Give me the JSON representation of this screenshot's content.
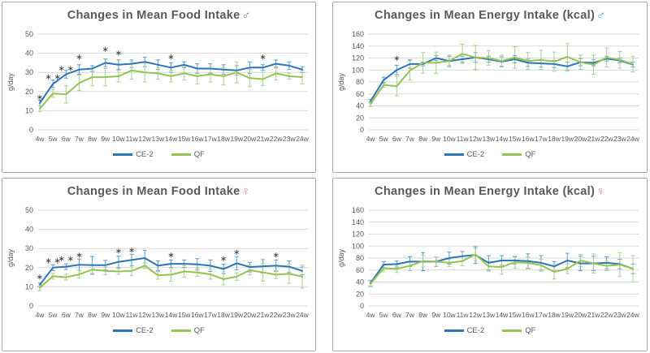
{
  "chart_data": [
    {
      "type": "line",
      "title": "Changes in Mean Food Intake",
      "symbol": "♂",
      "symbol_color": "#4a86c8",
      "ylabel": "g/day",
      "ylim": [
        0,
        50
      ],
      "ytick": 10,
      "grid": true,
      "legend_position": "bottom",
      "x": [
        "4w",
        "5w",
        "6w",
        "7w",
        "8w",
        "9w",
        "10w",
        "11w",
        "12w",
        "13w",
        "14w",
        "15w",
        "16w",
        "17w",
        "18w",
        "19w",
        "20w",
        "21w",
        "22w",
        "23w",
        "24w"
      ],
      "series": [
        {
          "name": "CE-2",
          "color": "#2e75b6",
          "err_color": "#5b9bd5",
          "values": [
            14,
            24,
            29,
            31.5,
            32,
            35,
            34,
            34.5,
            35.5,
            34,
            32.5,
            34,
            32,
            32,
            31.5,
            31,
            32.5,
            32.5,
            34.5,
            33.5,
            31.5
          ],
          "err": [
            1.5,
            2,
            2,
            2.5,
            1.5,
            2,
            2.5,
            2,
            2.5,
            2.5,
            2.5,
            1.5,
            2.5,
            2.5,
            2.5,
            2.5,
            3,
            1.5,
            2,
            2,
            1.5
          ]
        },
        {
          "name": "QF",
          "color": "#94c452",
          "err_color": "#a9d18e",
          "values": [
            11,
            19,
            18.5,
            24.5,
            27.5,
            27.5,
            28,
            31,
            30,
            29.5,
            28,
            29.5,
            28,
            29,
            28,
            30,
            27,
            26.5,
            29.5,
            28,
            27.5
          ],
          "err": [
            1.5,
            2,
            4.5,
            4,
            4.5,
            4.5,
            3,
            4.5,
            5,
            3,
            3,
            3.5,
            4,
            4,
            4.5,
            5.5,
            4.5,
            3.5,
            3.5,
            1.5,
            3.5
          ]
        }
      ],
      "asterisks": [
        {
          "i": 0,
          "y": 17,
          "n": 1
        },
        {
          "i": 1,
          "y": 27.5,
          "n": 2
        },
        {
          "i": 2,
          "y": 32,
          "n": 2
        },
        {
          "i": 3,
          "y": 38,
          "n": 1
        },
        {
          "i": 5,
          "y": 42,
          "n": 1
        },
        {
          "i": 6,
          "y": 40,
          "n": 1
        },
        {
          "i": 10,
          "y": 38,
          "n": 1
        },
        {
          "i": 17,
          "y": 38,
          "n": 1
        }
      ]
    },
    {
      "type": "line",
      "title": "Changes in Mean Energy Intake (kcal)",
      "symbol": "♂",
      "symbol_color": "#4a86c8",
      "ylabel": "g/day",
      "ylim": [
        0,
        160
      ],
      "ytick": 20,
      "grid": true,
      "legend_position": "bottom",
      "x": [
        "4w",
        "5w",
        "6w",
        "7w",
        "8w",
        "9w",
        "10w",
        "11w",
        "12w",
        "13w",
        "14w",
        "15w",
        "16w",
        "17w",
        "18w",
        "19w",
        "20w",
        "21w",
        "22w",
        "23w",
        "24w"
      ],
      "series": [
        {
          "name": "CE-2",
          "color": "#2e75b6",
          "err_color": "#5b9bd5",
          "values": [
            48,
            83,
            100,
            110,
            110,
            120,
            115,
            118,
            121,
            118,
            114,
            118,
            112,
            111,
            110,
            106,
            113,
            112,
            119,
            116,
            109
          ],
          "err": [
            3,
            5,
            8,
            7,
            3,
            4,
            8,
            5,
            8,
            5,
            8,
            6,
            6,
            6,
            6,
            7,
            6,
            5,
            4,
            4,
            4
          ]
        },
        {
          "name": "QF",
          "color": "#94c452",
          "err_color": "#a9d18e",
          "values": [
            43,
            75,
            73,
            99,
            112,
            112,
            115,
            127,
            121,
            120,
            115,
            121,
            115,
            117,
            114,
            122,
            113,
            109,
            121,
            117,
            110
          ],
          "err": [
            4,
            4,
            16,
            16,
            17,
            18,
            10,
            16,
            20,
            12,
            10,
            18,
            14,
            16,
            16,
            22,
            12,
            16,
            16,
            14,
            13
          ]
        }
      ],
      "asterisks": [
        {
          "i": 2,
          "y": 119,
          "n": 1
        }
      ]
    },
    {
      "type": "line",
      "title": "Changes in Mean Food Intake",
      "symbol": "♀",
      "symbol_color": "#ef6a6a",
      "ylabel": "g/day",
      "ylim": [
        0,
        50
      ],
      "ytick": 10,
      "grid": true,
      "legend_position": "bottom",
      "x": [
        "4w",
        "5w",
        "6w",
        "7w",
        "8w",
        "9w",
        "10w",
        "11w",
        "12w",
        "13w",
        "14w",
        "15w",
        "16w",
        "17w",
        "18w",
        "19w",
        "20w",
        "21w",
        "22w",
        "23w",
        "24w"
      ],
      "series": [
        {
          "name": "CE-2",
          "color": "#2e75b6",
          "err_color": "#5b9bd5",
          "values": [
            11,
            20,
            20.5,
            21.5,
            21.3,
            21.3,
            23,
            24,
            25,
            21,
            22,
            22,
            21.7,
            21,
            19.3,
            22.3,
            20.3,
            20.7,
            21,
            20.5,
            18.3
          ],
          "err": [
            1,
            1.5,
            1.5,
            3,
            4.5,
            2.5,
            3,
            3,
            4,
            2.5,
            2,
            2,
            3,
            3,
            2.5,
            3.5,
            2.5,
            3.5,
            3,
            3,
            2
          ]
        },
        {
          "name": "QF",
          "color": "#94c452",
          "err_color": "#a9d18e",
          "values": [
            9.5,
            15.5,
            15,
            16.5,
            19,
            18.3,
            18,
            18.3,
            21,
            16,
            16.3,
            18,
            17.5,
            16.5,
            14,
            15.3,
            18.7,
            17.5,
            16.3,
            16.8,
            15.3
          ],
          "err": [
            1.5,
            1.5,
            1.5,
            2,
            2.5,
            2,
            1.5,
            2.5,
            1.5,
            2,
            3.5,
            3,
            2,
            2.5,
            3,
            2,
            2.5,
            4.5,
            2,
            5,
            6
          ]
        }
      ],
      "asterisks": [
        {
          "i": 0,
          "y": 15,
          "n": 1
        },
        {
          "i": 1,
          "y": 23.5,
          "n": 2
        },
        {
          "i": 2,
          "y": 24.5,
          "n": 2
        },
        {
          "i": 3,
          "y": 26.5,
          "n": 1
        },
        {
          "i": 6,
          "y": 28.5,
          "n": 1
        },
        {
          "i": 7,
          "y": 29,
          "n": 1
        },
        {
          "i": 10,
          "y": 26.5,
          "n": 1
        },
        {
          "i": 14,
          "y": 24.5,
          "n": 1
        },
        {
          "i": 15,
          "y": 28,
          "n": 1
        },
        {
          "i": 18,
          "y": 26.5,
          "n": 1
        }
      ]
    },
    {
      "type": "line",
      "title": "Changes in Mean Energy Intake (kcal)",
      "symbol": "♀",
      "symbol_color": "#ef6a6a",
      "ylabel": "g/day",
      "ylim": [
        0,
        160
      ],
      "ytick": 20,
      "grid": true,
      "legend_position": "bottom",
      "x": [
        "4w",
        "5w",
        "6w",
        "7w",
        "8w",
        "9w",
        "10w",
        "11w",
        "12w",
        "13w",
        "14w",
        "15w",
        "16w",
        "17w",
        "18w",
        "19w",
        "20w",
        "21w",
        "22w",
        "23w",
        "24w"
      ],
      "series": [
        {
          "name": "CE-2",
          "color": "#2e75b6",
          "err_color": "#5b9bd5",
          "values": [
            38,
            69,
            70,
            74,
            74,
            74,
            80,
            83,
            85,
            72,
            76,
            76,
            75,
            72,
            66,
            76,
            71,
            71,
            72,
            70,
            62
          ],
          "err": [
            5,
            5,
            5,
            8,
            15,
            8,
            10,
            8,
            14,
            12,
            8,
            6,
            12,
            12,
            8,
            12,
            12,
            12,
            10,
            8,
            8
          ]
        },
        {
          "name": "QF",
          "color": "#94c452",
          "err_color": "#a9d18e",
          "values": [
            37,
            63,
            62,
            67,
            75,
            74,
            72,
            75,
            86,
            66,
            65,
            73,
            72,
            68,
            57,
            62,
            76,
            71,
            67,
            69,
            62
          ],
          "err": [
            5,
            6,
            6,
            8,
            10,
            8,
            6,
            8,
            10,
            8,
            12,
            10,
            10,
            10,
            12,
            8,
            10,
            16,
            8,
            20,
            22
          ]
        }
      ],
      "asterisks": []
    }
  ],
  "colors": {
    "title_text": "#595959",
    "grid_line": "#d9d9d9",
    "panel_border": "#ababab",
    "asterisk": "#404040"
  }
}
